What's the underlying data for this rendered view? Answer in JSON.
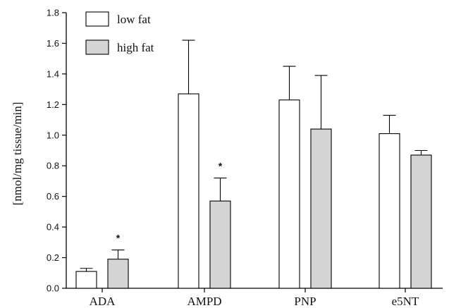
{
  "chart_data": {
    "type": "bar",
    "title": "",
    "xlabel": "",
    "ylabel": "[nmol/mg tissue/min]",
    "ylim": [
      0,
      1.8
    ],
    "yticks": [
      "0.0",
      "0.2",
      "0.4",
      "0.6",
      "0.8",
      "1.0",
      "1.2",
      "1.4",
      "1.6",
      "1.8"
    ],
    "categories": [
      "ADA",
      "AMPD",
      "PNP",
      "e5NT"
    ],
    "series": [
      {
        "name": "low fat",
        "color": "#ffffff",
        "values": [
          0.11,
          1.27,
          1.23,
          1.01
        ],
        "errors": [
          0.02,
          0.35,
          0.22,
          0.12
        ]
      },
      {
        "name": "high fat",
        "color": "#d4d4d4",
        "values": [
          0.19,
          0.57,
          1.04,
          0.87
        ],
        "errors": [
          0.06,
          0.15,
          0.35,
          0.03
        ]
      }
    ],
    "significance": [
      {
        "category": "ADA",
        "series": "high fat",
        "label": "*"
      },
      {
        "category": "AMPD",
        "series": "high fat",
        "label": "*"
      }
    ],
    "legend": "top-left",
    "grid": false
  }
}
